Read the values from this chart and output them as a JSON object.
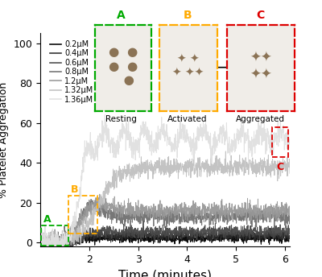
{
  "title": "",
  "xlabel": "Time (minutes)",
  "ylabel": "% Platelet Aggregation",
  "xlim": [
    1.0,
    6.1
  ],
  "ylim": [
    -2,
    105
  ],
  "yticks": [
    0,
    20,
    40,
    60,
    80,
    100
  ],
  "xticks": [
    2,
    3,
    4,
    5,
    6
  ],
  "legend_labels": [
    "0.2μM",
    "0.4μM",
    "0.6μM",
    "0.8μM",
    "1.2μM",
    "1.32μM",
    "1.36μM"
  ],
  "line_colors": [
    "#000000",
    "#2a2a2a",
    "#484848",
    "#707070",
    "#989898",
    "#c0c0c0",
    "#e0e0e0"
  ],
  "line_widths": [
    0.7,
    0.7,
    0.7,
    0.7,
    0.7,
    0.7,
    0.7
  ],
  "background_color": "#ffffff",
  "box_A_color": "#00aa00",
  "box_B_color": "#ffaa00",
  "box_C_color": "#dd0000"
}
